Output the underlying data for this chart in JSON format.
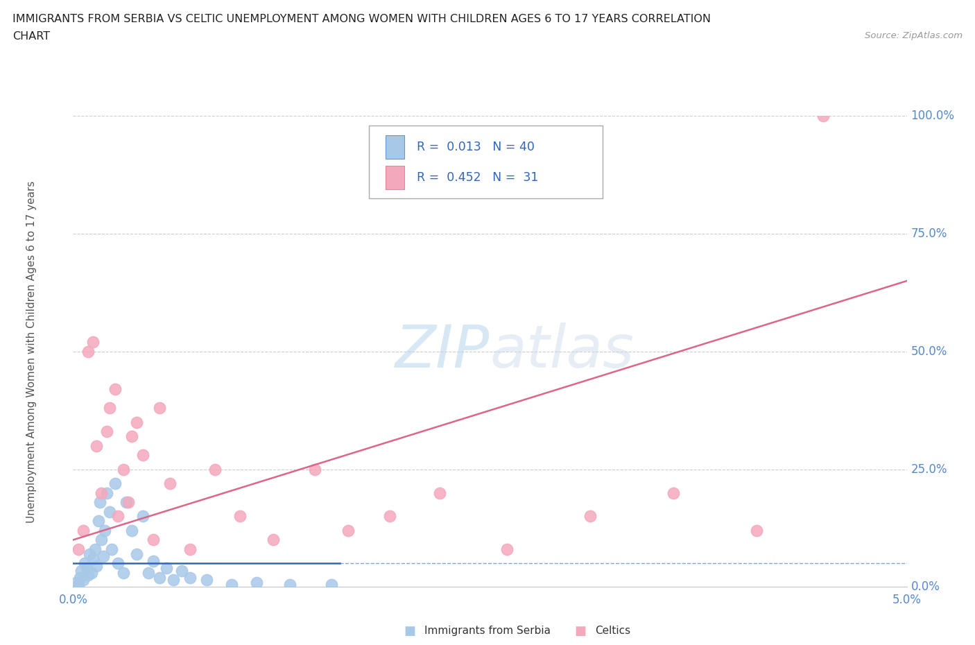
{
  "title_line1": "IMMIGRANTS FROM SERBIA VS CELTIC UNEMPLOYMENT AMONG WOMEN WITH CHILDREN AGES 6 TO 17 YEARS CORRELATION",
  "title_line2": "CHART",
  "source_text": "Source: ZipAtlas.com",
  "ylabel": "Unemployment Among Women with Children Ages 6 to 17 years",
  "xlim": [
    0.0,
    5.0
  ],
  "ylim": [
    0.0,
    100.0
  ],
  "ytick_values": [
    0.0,
    25.0,
    50.0,
    75.0,
    100.0
  ],
  "ytick_labels": [
    "0.0%",
    "25.0%",
    "50.0%",
    "75.0%",
    "100.0%"
  ],
  "xtick_values": [
    0.0,
    5.0
  ],
  "xtick_labels": [
    "0.0%",
    "5.0%"
  ],
  "grid_color": "#cccccc",
  "background_color": "#ffffff",
  "tick_color": "#5588cc",
  "serbia_color": "#a8c8e8",
  "celtics_color": "#f4a8bc",
  "serbia_line_color": "#3366bb",
  "celtics_line_color": "#dd6688",
  "serbia_R": 0.013,
  "serbia_N": 40,
  "celtics_R": 0.452,
  "celtics_N": 31,
  "serbia_x": [
    0.02,
    0.03,
    0.04,
    0.05,
    0.06,
    0.07,
    0.08,
    0.09,
    0.1,
    0.11,
    0.12,
    0.13,
    0.14,
    0.15,
    0.16,
    0.17,
    0.18,
    0.19,
    0.2,
    0.22,
    0.23,
    0.25,
    0.27,
    0.3,
    0.32,
    0.35,
    0.38,
    0.42,
    0.45,
    0.48,
    0.52,
    0.56,
    0.6,
    0.65,
    0.7,
    0.8,
    0.95,
    1.1,
    1.3,
    1.55
  ],
  "serbia_y": [
    1.0,
    0.5,
    2.0,
    3.5,
    1.5,
    5.0,
    4.0,
    2.5,
    7.0,
    3.0,
    6.0,
    8.0,
    4.5,
    14.0,
    18.0,
    10.0,
    6.5,
    12.0,
    20.0,
    16.0,
    8.0,
    22.0,
    5.0,
    3.0,
    18.0,
    12.0,
    7.0,
    15.0,
    3.0,
    5.5,
    2.0,
    4.0,
    1.5,
    3.5,
    2.0,
    1.5,
    0.5,
    1.0,
    0.5,
    0.5
  ],
  "celtics_x": [
    0.03,
    0.06,
    0.09,
    0.12,
    0.14,
    0.17,
    0.2,
    0.22,
    0.25,
    0.27,
    0.3,
    0.33,
    0.35,
    0.38,
    0.42,
    0.48,
    0.52,
    0.58,
    0.7,
    0.85,
    1.0,
    1.2,
    1.45,
    1.65,
    1.9,
    2.2,
    2.6,
    3.1,
    3.6,
    4.1,
    4.5
  ],
  "celtics_y": [
    8.0,
    12.0,
    50.0,
    52.0,
    30.0,
    20.0,
    33.0,
    38.0,
    42.0,
    15.0,
    25.0,
    18.0,
    32.0,
    35.0,
    28.0,
    10.0,
    38.0,
    22.0,
    8.0,
    25.0,
    15.0,
    10.0,
    25.0,
    12.0,
    15.0,
    20.0,
    8.0,
    15.0,
    20.0,
    12.0,
    100.0
  ],
  "legend_text_color": "#3366bb",
  "legend_R_color": "#3366bb",
  "watermark_color": "#cce0f0",
  "bottom_legend_serbia": "Immigrants from Serbia",
  "bottom_legend_celtics": "Celtics"
}
